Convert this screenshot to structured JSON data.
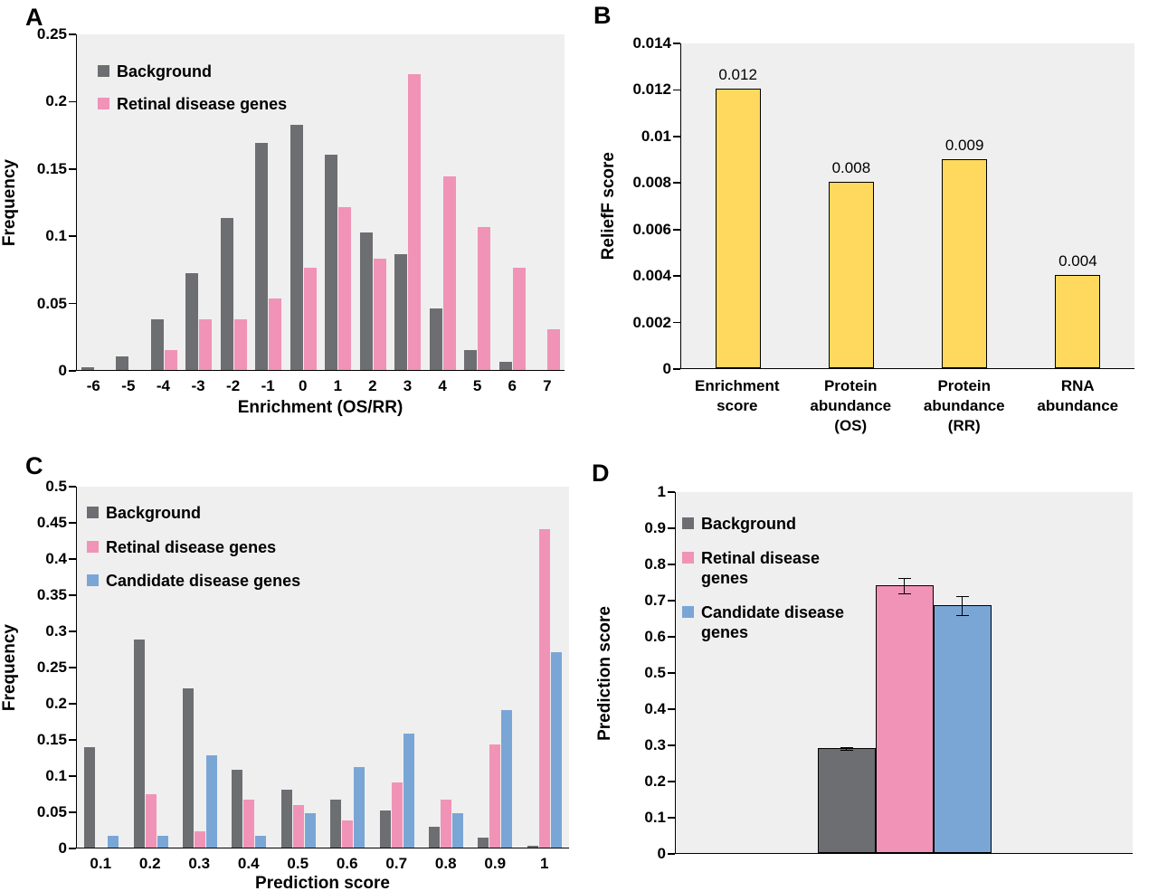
{
  "panels": {
    "A": {
      "label": "A"
    },
    "B": {
      "label": "B"
    },
    "C": {
      "label": "C"
    },
    "D": {
      "label": "D"
    }
  },
  "chart_data": [
    {
      "panel": "A",
      "type": "bar",
      "title": "",
      "xlabel": "Enrichment (OS/RR)",
      "ylabel": "Frequency",
      "ylim": [
        0,
        0.25
      ],
      "ystep": 0.05,
      "grid": false,
      "legend_position": "top-left",
      "plot_bg": "#efefef",
      "categories": [
        "-6",
        "-5",
        "-4",
        "-3",
        "-2",
        "-1",
        "0",
        "1",
        "2",
        "3",
        "4",
        "5",
        "6",
        "7"
      ],
      "series": [
        {
          "name": "Background",
          "color": "#6d6e71",
          "values": [
            0.002,
            0.01,
            0.038,
            0.072,
            0.113,
            0.169,
            0.182,
            0.16,
            0.102,
            0.086,
            0.046,
            0.015,
            0.006,
            0
          ]
        },
        {
          "name": "Retinal disease genes",
          "color": "#f093b6",
          "values": [
            0,
            0,
            0.015,
            0.038,
            0.038,
            0.053,
            0.076,
            0.121,
            0.083,
            0.22,
            0.144,
            0.106,
            0.076,
            0.03
          ]
        }
      ]
    },
    {
      "panel": "B",
      "type": "bar",
      "title": "",
      "xlabel": "",
      "ylabel": "ReliefF score",
      "ylim": [
        0,
        0.014
      ],
      "ystep": 0.002,
      "grid": false,
      "legend_position": "none",
      "plot_bg": "#efefef",
      "categories": [
        "Enrichment\nscore",
        "Protein\nabundance\n(OS)",
        "Protein\nabundance\n(RR)",
        "RNA\nabundance"
      ],
      "series": [
        {
          "name": "ReliefF score",
          "color": "#ffd95e",
          "border": "#000000",
          "values": [
            0.012,
            0.008,
            0.009,
            0.004
          ]
        }
      ],
      "data_labels": [
        "0.012",
        "0.008",
        "0.009",
        "0.004"
      ]
    },
    {
      "panel": "C",
      "type": "bar",
      "title": "",
      "xlabel": "Prediction score",
      "ylabel": "Frequency",
      "ylim": [
        0,
        0.5
      ],
      "ystep": 0.05,
      "grid": false,
      "legend_position": "top-left",
      "plot_bg": "#efefef",
      "categories": [
        "0.1",
        "0.2",
        "0.3",
        "0.4",
        "0.5",
        "0.6",
        "0.7",
        "0.8",
        "0.9",
        "1"
      ],
      "series": [
        {
          "name": "Background",
          "color": "#6d6e71",
          "values": [
            0.139,
            0.288,
            0.22,
            0.108,
            0.08,
            0.066,
            0.051,
            0.029,
            0.014,
            0.002
          ]
        },
        {
          "name": "Retinal disease genes",
          "color": "#f093b6",
          "values": [
            0,
            0.074,
            0.023,
            0.066,
            0.059,
            0.038,
            0.09,
            0.066,
            0.142,
            0.44
          ]
        },
        {
          "name": "Candidate disease genes",
          "color": "#7aa6d6",
          "values": [
            0.016,
            0.016,
            0.128,
            0.016,
            0.047,
            0.111,
            0.158,
            0.047,
            0.19,
            0.27
          ]
        }
      ]
    },
    {
      "panel": "D",
      "type": "bar",
      "title": "",
      "xlabel": "",
      "ylabel": "Prediction score",
      "ylim": [
        0,
        1
      ],
      "ystep": 0.1,
      "grid": false,
      "legend_position": "top-left",
      "plot_bg": "#efefef",
      "categories": [
        ""
      ],
      "series": [
        {
          "name": "Background",
          "color": "#6d6e71",
          "border": "#000000",
          "values": [
            0.29
          ],
          "errors": [
            0.005
          ]
        },
        {
          "name": "Retinal disease\ngenes",
          "color": "#f093b6",
          "border": "#000000",
          "values": [
            0.74
          ],
          "errors": [
            0.022
          ]
        },
        {
          "name": "Candidate disease\ngenes",
          "color": "#7aa6d6",
          "border": "#000000",
          "values": [
            0.685
          ],
          "errors": [
            0.028
          ]
        }
      ]
    }
  ]
}
